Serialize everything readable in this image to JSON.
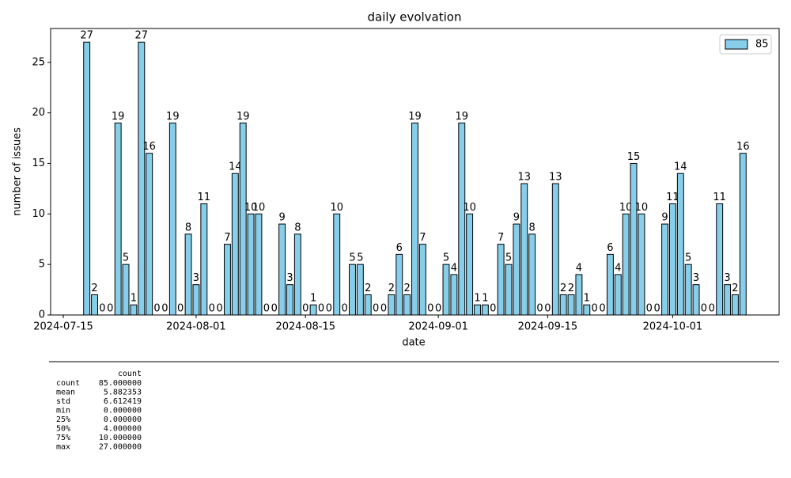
{
  "chart_data": {
    "type": "bar",
    "title": "daily evolvation",
    "xlabel": "date",
    "ylabel": "number of issues",
    "x": [
      "2024-07-18",
      "2024-07-19",
      "2024-07-20",
      "2024-07-21",
      "2024-07-22",
      "2024-07-23",
      "2024-07-24",
      "2024-07-25",
      "2024-07-26",
      "2024-07-27",
      "2024-07-28",
      "2024-07-29",
      "2024-07-30",
      "2024-07-31",
      "2024-08-01",
      "2024-08-02",
      "2024-08-03",
      "2024-08-04",
      "2024-08-05",
      "2024-08-06",
      "2024-08-07",
      "2024-08-08",
      "2024-08-09",
      "2024-08-10",
      "2024-08-11",
      "2024-08-12",
      "2024-08-13",
      "2024-08-14",
      "2024-08-15",
      "2024-08-16",
      "2024-08-17",
      "2024-08-18",
      "2024-08-19",
      "2024-08-20",
      "2024-08-21",
      "2024-08-22",
      "2024-08-23",
      "2024-08-24",
      "2024-08-25",
      "2024-08-26",
      "2024-08-27",
      "2024-08-28",
      "2024-08-29",
      "2024-08-30",
      "2024-08-31",
      "2024-09-01",
      "2024-09-02",
      "2024-09-03",
      "2024-09-04",
      "2024-09-05",
      "2024-09-06",
      "2024-09-07",
      "2024-09-08",
      "2024-09-09",
      "2024-09-10",
      "2024-09-11",
      "2024-09-12",
      "2024-09-13",
      "2024-09-14",
      "2024-09-15",
      "2024-09-16",
      "2024-09-17",
      "2024-09-18",
      "2024-09-19",
      "2024-09-20",
      "2024-09-21",
      "2024-09-22",
      "2024-09-23",
      "2024-09-24",
      "2024-09-25",
      "2024-09-26",
      "2024-09-27",
      "2024-09-28",
      "2024-09-29",
      "2024-09-30",
      "2024-10-01",
      "2024-10-02",
      "2024-10-03",
      "2024-10-04",
      "2024-10-05",
      "2024-10-06",
      "2024-10-07",
      "2024-10-08",
      "2024-10-09",
      "2024-10-10"
    ],
    "series": [
      {
        "name": "85",
        "color": "#87ceeb",
        "values": [
          27,
          2,
          0,
          0,
          19,
          5,
          1,
          27,
          16,
          0,
          0,
          19,
          0,
          8,
          3,
          11,
          0,
          0,
          7,
          14,
          19,
          10,
          10,
          0,
          0,
          9,
          3,
          8,
          0,
          1,
          0,
          0,
          10,
          0,
          5,
          5,
          2,
          0,
          0,
          2,
          6,
          2,
          19,
          7,
          0,
          0,
          5,
          4,
          19,
          10,
          1,
          1,
          0,
          7,
          5,
          9,
          13,
          8,
          0,
          0,
          13,
          2,
          2,
          4,
          1,
          0,
          0,
          6,
          4,
          10,
          15,
          10,
          0,
          0,
          9,
          11,
          14,
          5,
          3,
          0,
          0,
          11,
          3,
          2,
          16
        ]
      }
    ],
    "xlim": [
      "2024-07-13T09:00:00Z",
      "2024-10-14T15:00:00Z"
    ],
    "xticks": [
      "2024-07-15",
      "2024-08-01",
      "2024-08-15",
      "2024-09-01",
      "2024-09-15",
      "2024-10-01"
    ],
    "ylim": [
      0,
      28.35
    ],
    "yticks": [
      0,
      5,
      10,
      15,
      20,
      25
    ],
    "legend": "upper right"
  },
  "table": {
    "header": "count",
    "rows": [
      [
        "count",
        "85.000000"
      ],
      [
        "mean",
        "5.882353"
      ],
      [
        "std",
        "6.612419"
      ],
      [
        "min",
        "0.000000"
      ],
      [
        "25%",
        "0.000000"
      ],
      [
        "50%",
        "4.000000"
      ],
      [
        "75%",
        "10.000000"
      ],
      [
        "max",
        "27.000000"
      ]
    ]
  }
}
